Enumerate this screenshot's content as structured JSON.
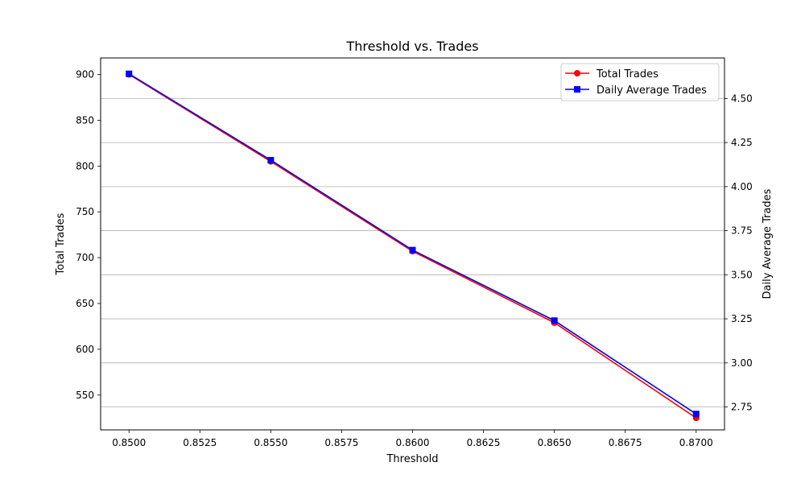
{
  "chart_data": {
    "type": "line",
    "title": "Threshold vs. Trades",
    "xlabel": "Threshold",
    "ylabel_left": "Total Trades",
    "ylabel_right": "Daily Average Trades",
    "x": [
      0.85,
      0.855,
      0.86,
      0.865,
      0.87
    ],
    "xlim": [
      0.849,
      0.871
    ],
    "xticks": [
      0.85,
      0.8525,
      0.855,
      0.8575,
      0.86,
      0.8625,
      0.865,
      0.8675,
      0.87
    ],
    "xtick_labels": [
      "0.8500",
      "0.8525",
      "0.8550",
      "0.8575",
      "0.8600",
      "0.8625",
      "0.8650",
      "0.8675",
      "0.8700"
    ],
    "ylim_left": [
      512,
      918
    ],
    "yticks_left": [
      550,
      600,
      650,
      700,
      750,
      800,
      850,
      900
    ],
    "ylim_right": [
      2.62,
      4.73
    ],
    "yticks_right": [
      2.75,
      3.0,
      3.25,
      3.5,
      3.75,
      4.0,
      4.25,
      4.5
    ],
    "ytick_labels_right": [
      "2.75",
      "3.00",
      "3.25",
      "3.50",
      "3.75",
      "4.00",
      "4.25",
      "4.50"
    ],
    "grid": "horizontal (right axis)",
    "legend_position": "top-right",
    "series": [
      {
        "name": "Total Trades",
        "axis": "left",
        "color": "#ff0000",
        "marker": "circle",
        "values": [
          900,
          805,
          707,
          629,
          525
        ]
      },
      {
        "name": "Daily Average Trades",
        "axis": "right",
        "color": "#0000ff",
        "marker": "square",
        "values": [
          4.64,
          4.15,
          3.64,
          3.24,
          2.71
        ]
      }
    ]
  }
}
